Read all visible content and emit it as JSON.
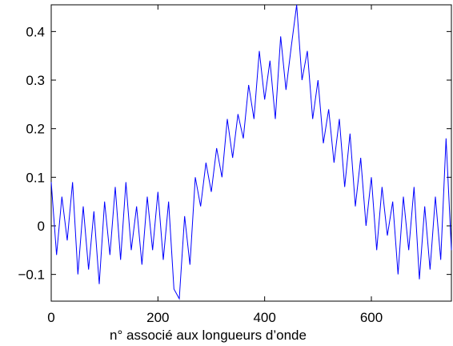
{
  "chart_data": {
    "type": "line",
    "title": "",
    "xlabel": "n° associé aux longueurs d’onde",
    "ylabel": "",
    "xlim": [
      0,
      750
    ],
    "ylim": [
      -0.155,
      0.455
    ],
    "grid": false,
    "legend": "none",
    "xticks": [
      0,
      200,
      400,
      600
    ],
    "yticks": [
      0.4,
      0.3,
      0.2,
      0.1,
      0,
      -0.1
    ],
    "xtick_labels": [
      "0",
      "200",
      "400",
      "600"
    ],
    "ytick_labels": [
      "0.4",
      "0.3",
      "0.2",
      "0.1",
      "0",
      "−0.1"
    ],
    "series": [
      {
        "color": "#0000ff",
        "x": [
          0,
          10,
          20,
          30,
          40,
          50,
          60,
          70,
          80,
          90,
          100,
          110,
          120,
          130,
          140,
          150,
          160,
          170,
          180,
          190,
          200,
          210,
          220,
          230,
          240,
          250,
          260,
          270,
          280,
          290,
          300,
          310,
          320,
          330,
          340,
          350,
          360,
          370,
          380,
          390,
          400,
          410,
          420,
          430,
          440,
          450,
          460,
          470,
          480,
          490,
          500,
          510,
          520,
          530,
          540,
          550,
          560,
          570,
          580,
          590,
          600,
          610,
          620,
          630,
          640,
          650,
          660,
          670,
          680,
          690,
          700,
          710,
          720,
          730,
          740,
          750
        ],
        "y": [
          0.09,
          -0.06,
          0.06,
          -0.03,
          0.09,
          -0.1,
          0.04,
          -0.09,
          0.03,
          -0.12,
          0.05,
          -0.06,
          0.08,
          -0.07,
          0.09,
          -0.05,
          0.04,
          -0.08,
          0.06,
          -0.05,
          0.07,
          -0.07,
          0.05,
          -0.13,
          -0.15,
          0.02,
          -0.08,
          0.1,
          0.04,
          0.13,
          0.07,
          0.16,
          0.1,
          0.22,
          0.14,
          0.23,
          0.18,
          0.29,
          0.22,
          0.36,
          0.26,
          0.34,
          0.22,
          0.39,
          0.28,
          0.37,
          0.455,
          0.3,
          0.36,
          0.22,
          0.3,
          0.17,
          0.24,
          0.13,
          0.22,
          0.08,
          0.19,
          0.04,
          0.14,
          0.0,
          0.1,
          -0.05,
          0.08,
          -0.02,
          0.05,
          -0.1,
          0.06,
          -0.05,
          0.08,
          -0.11,
          0.04,
          -0.09,
          0.06,
          -0.07,
          0.18,
          -0.05
        ]
      }
    ]
  }
}
